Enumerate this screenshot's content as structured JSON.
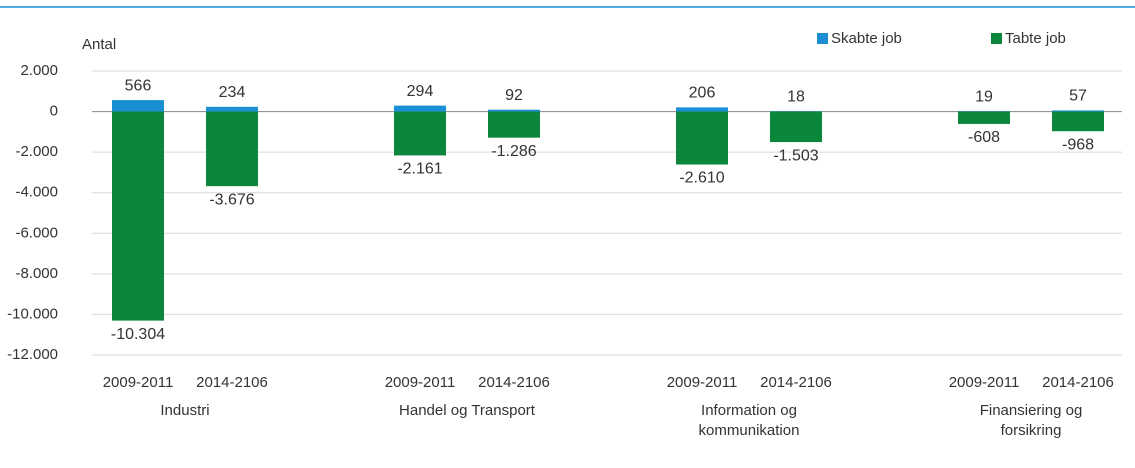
{
  "chart_data": {
    "type": "bar",
    "stacked": true,
    "y_axis_label": "Antal",
    "categories": [
      "2009-2011",
      "2014-2106",
      "2009-2011",
      "2014-2106",
      "2009-2011",
      "2014-2106",
      "2009-2011",
      "2014-2106"
    ],
    "groups": [
      [
        "Industri"
      ],
      [
        "Handel og Transport"
      ],
      [
        "Information og",
        "kommunikation"
      ],
      [
        "Finansiering og",
        "forsikring"
      ]
    ],
    "series": [
      {
        "name": "Skabte job",
        "color": "#1a8fd3",
        "values": [
          566,
          234,
          294,
          92,
          206,
          18,
          19,
          57
        ]
      },
      {
        "name": "Tabte job",
        "color": "#0a873a",
        "values": [
          -10304,
          -3676,
          -2161,
          -1286,
          -2610,
          -1503,
          -608,
          -968
        ],
        "value_labels": [
          "-10.304",
          "-3.676",
          "-2.161",
          "-1.286",
          "-2.610",
          "-1.503",
          "-608",
          "-968"
        ]
      }
    ],
    "ylim": [
      -12000,
      2000
    ],
    "yticks": [
      {
        "value": 2000,
        "label": "2.000"
      },
      0,
      {
        "value": -2000,
        "label": "-2.000"
      },
      {
        "value": -4000,
        "label": "-4.000"
      },
      {
        "value": -6000,
        "label": "-6.000"
      },
      {
        "value": -8000,
        "label": "-8.000"
      },
      {
        "value": -10000,
        "label": "-10.000"
      },
      {
        "value": -12000,
        "label": "-12.000"
      }
    ],
    "grid": true,
    "legend": "top-right"
  }
}
